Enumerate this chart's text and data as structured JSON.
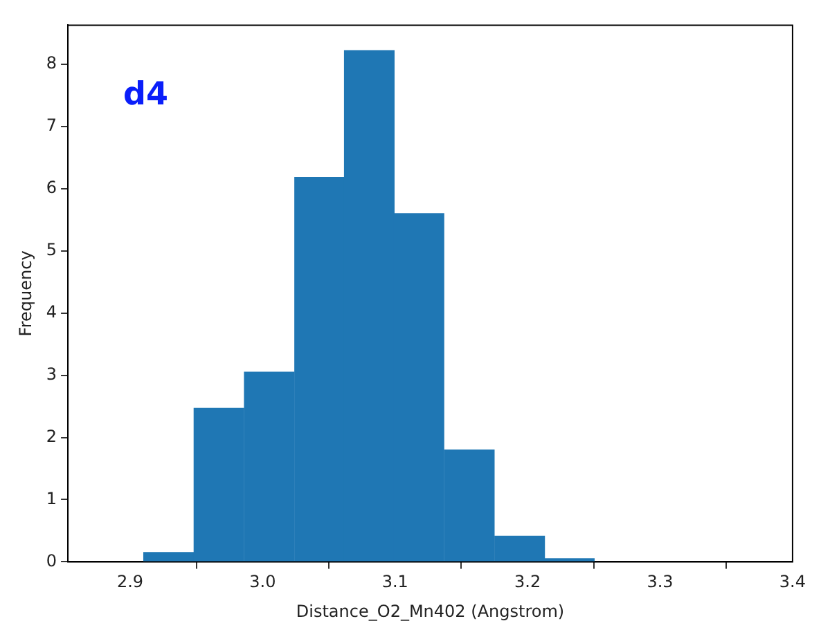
{
  "chart_data": {
    "type": "histogram",
    "xlabel": "Distance_O2_Mn402 (Angstrom)",
    "ylabel": "Frequency",
    "annotations": [
      "d4"
    ],
    "bins": [
      2.91,
      2.948,
      2.986,
      3.024,
      3.062,
      3.099,
      3.137,
      3.175,
      3.213,
      3.25
    ],
    "values": [
      0.15,
      2.47,
      3.05,
      6.18,
      8.22,
      5.6,
      1.8,
      0.41,
      0.05
    ],
    "color": "#1f77b4",
    "xlim": [
      2.853,
      3.4
    ],
    "xticks": [
      2.9,
      {
        "value": 3.0,
        "label": "3.0"
      },
      3.1,
      3.2,
      3.3,
      3.4
    ],
    "ylim": [
      0,
      8.63
    ],
    "yticks": [
      0,
      1,
      2,
      3,
      4,
      5,
      6,
      7,
      8
    ],
    "grid": false,
    "legend": false
  }
}
